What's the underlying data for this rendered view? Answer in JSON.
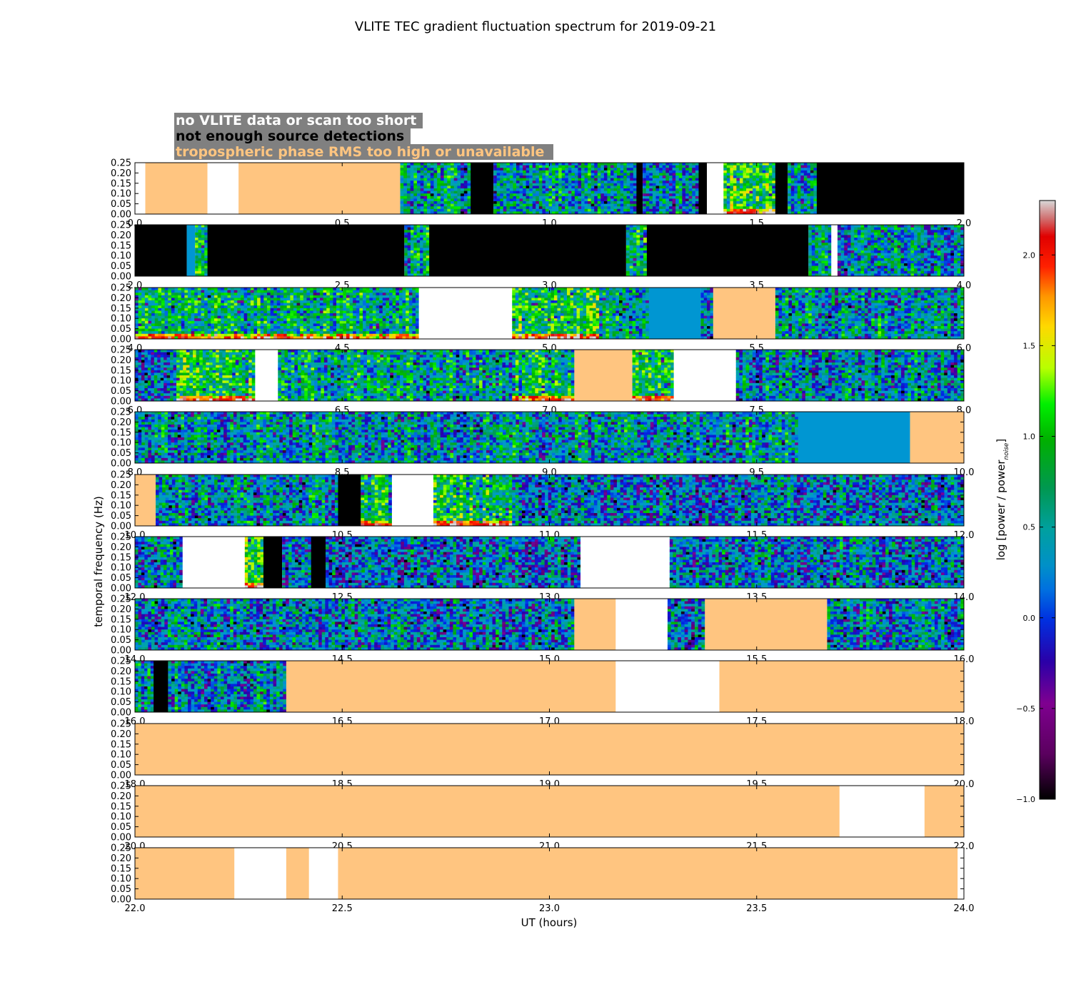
{
  "chart_data": {
    "type": "heatmap",
    "title": "VLITE TEC gradient fluctuation spectrum for 2019-09-21",
    "xlabel": "UT (hours)",
    "ylabel": "temporal frequency (Hz)",
    "colorbar": {
      "label": "log [power / power",
      "label_subscript": "noise",
      "label_close": "]",
      "range": [
        -1.0,
        2.3
      ],
      "ticks": [
        -1.0,
        -0.5,
        0.0,
        0.5,
        1.0,
        1.5,
        2.0
      ],
      "tick_labels": [
        "−1.0",
        "−0.5",
        "0.0",
        "0.5",
        "1.0",
        "1.5",
        "2.0"
      ]
    },
    "legend": [
      {
        "label": "no VLITE data or scan too short",
        "color": "#ffffff",
        "category": "nodata"
      },
      {
        "label": "not enough source detections",
        "color": "#000000",
        "category": "nodetect"
      },
      {
        "label": "tropospheric phase RMS too high or unavailable",
        "color": "#ffc580",
        "category": "tropo"
      }
    ],
    "yticks": [
      0.0,
      0.05,
      0.1,
      0.15,
      0.2,
      0.25
    ],
    "ytick_labels": [
      "0.00",
      "0.05",
      "0.10",
      "0.15",
      "0.20",
      "0.25"
    ],
    "panels": [
      {
        "x_range": [
          0.0,
          2.0
        ],
        "xticks": [
          "0.0",
          "0.5",
          "1.0",
          "1.5",
          "2.0"
        ],
        "segments": [
          {
            "start": 0.0,
            "end": 0.025,
            "type": "nodata"
          },
          {
            "start": 0.025,
            "end": 0.175,
            "type": "tropo"
          },
          {
            "start": 0.175,
            "end": 0.25,
            "type": "nodata"
          },
          {
            "start": 0.25,
            "end": 0.64,
            "type": "tropo"
          },
          {
            "start": 0.64,
            "end": 0.81,
            "type": "spectrum",
            "level": 0.2
          },
          {
            "start": 0.81,
            "end": 0.865,
            "type": "nodetect"
          },
          {
            "start": 0.865,
            "end": 1.21,
            "type": "spectrum",
            "level": 0.15
          },
          {
            "start": 1.21,
            "end": 1.225,
            "type": "nodetect"
          },
          {
            "start": 1.225,
            "end": 1.36,
            "type": "spectrum",
            "level": 0.1
          },
          {
            "start": 1.36,
            "end": 1.38,
            "type": "nodetect"
          },
          {
            "start": 1.38,
            "end": 1.42,
            "type": "nodata"
          },
          {
            "start": 1.42,
            "end": 1.545,
            "type": "spectrum",
            "level": 0.6,
            "hotlow": true
          },
          {
            "start": 1.545,
            "end": 1.575,
            "type": "nodetect"
          },
          {
            "start": 1.575,
            "end": 1.645,
            "type": "spectrum",
            "level": 0.2
          },
          {
            "start": 1.645,
            "end": 2.0,
            "type": "nodetect"
          }
        ]
      },
      {
        "x_range": [
          2.0,
          4.0
        ],
        "xticks": [
          "2.0",
          "2.5",
          "3.0",
          "3.5",
          "4.0"
        ],
        "segments": [
          {
            "start": 2.0,
            "end": 2.125,
            "type": "nodetect"
          },
          {
            "start": 2.125,
            "end": 2.145,
            "type": "flat"
          },
          {
            "start": 2.145,
            "end": 2.175,
            "type": "spectrum",
            "level": 0.4
          },
          {
            "start": 2.175,
            "end": 2.65,
            "type": "nodetect"
          },
          {
            "start": 2.65,
            "end": 2.71,
            "type": "spectrum",
            "level": 0.3
          },
          {
            "start": 2.71,
            "end": 3.185,
            "type": "nodetect"
          },
          {
            "start": 3.185,
            "end": 3.235,
            "type": "spectrum",
            "level": 0.3
          },
          {
            "start": 3.235,
            "end": 3.625,
            "type": "nodetect"
          },
          {
            "start": 3.625,
            "end": 3.68,
            "type": "spectrum",
            "level": 0.25
          },
          {
            "start": 3.68,
            "end": 3.695,
            "type": "nodata"
          },
          {
            "start": 3.695,
            "end": 4.0,
            "type": "spectrum",
            "level": 0.1
          }
        ]
      },
      {
        "x_range": [
          4.0,
          6.0
        ],
        "xticks": [
          "4.0",
          "4.5",
          "5.0",
          "5.5",
          "6.0"
        ],
        "segments": [
          {
            "start": 4.0,
            "end": 4.685,
            "type": "spectrum",
            "level": 0.35,
            "hotlow": true
          },
          {
            "start": 4.685,
            "end": 4.91,
            "type": "nodata"
          },
          {
            "start": 4.91,
            "end": 5.12,
            "type": "spectrum",
            "level": 0.6,
            "hotlow": true
          },
          {
            "start": 5.12,
            "end": 5.24,
            "type": "spectrum",
            "level": 0.3
          },
          {
            "start": 5.24,
            "end": 5.365,
            "type": "flat"
          },
          {
            "start": 5.365,
            "end": 5.395,
            "type": "spectrum",
            "level": 0.1
          },
          {
            "start": 5.395,
            "end": 5.545,
            "type": "tropo"
          },
          {
            "start": 5.545,
            "end": 6.0,
            "type": "spectrum",
            "level": 0.15
          }
        ]
      },
      {
        "x_range": [
          6.0,
          8.0
        ],
        "xticks": [
          "6.0",
          "6.5",
          "7.0",
          "7.5",
          "8.0"
        ],
        "segments": [
          {
            "start": 6.0,
            "end": 6.1,
            "type": "spectrum",
            "level": 0.0
          },
          {
            "start": 6.1,
            "end": 6.29,
            "type": "spectrum",
            "level": 0.55,
            "hotlow": true
          },
          {
            "start": 6.29,
            "end": 6.345,
            "type": "nodata"
          },
          {
            "start": 6.345,
            "end": 6.695,
            "type": "spectrum",
            "level": 0.3
          },
          {
            "start": 6.695,
            "end": 6.91,
            "type": "spectrum",
            "level": 0.2
          },
          {
            "start": 6.91,
            "end": 7.06,
            "type": "spectrum",
            "level": 0.4,
            "hotlow": true
          },
          {
            "start": 7.06,
            "end": 7.2,
            "type": "tropo"
          },
          {
            "start": 7.2,
            "end": 7.3,
            "type": "spectrum",
            "level": 0.5,
            "hotlow": true
          },
          {
            "start": 7.3,
            "end": 7.45,
            "type": "nodata"
          },
          {
            "start": 7.45,
            "end": 8.0,
            "type": "spectrum",
            "level": 0.1
          }
        ]
      },
      {
        "x_range": [
          8.0,
          10.0
        ],
        "xticks": [
          "8.0",
          "8.5",
          "9.0",
          "9.5",
          "10.0"
        ],
        "segments": [
          {
            "start": 8.0,
            "end": 9.6,
            "type": "spectrum",
            "level": 0.15
          },
          {
            "start": 9.6,
            "end": 9.87,
            "type": "flat"
          },
          {
            "start": 9.87,
            "end": 10.0,
            "type": "tropo"
          }
        ]
      },
      {
        "x_range": [
          10.0,
          12.0
        ],
        "xticks": [
          "10.0",
          "10.5",
          "11.0",
          "11.5",
          "12.0"
        ],
        "segments": [
          {
            "start": 10.0,
            "end": 10.05,
            "type": "tropo"
          },
          {
            "start": 10.05,
            "end": 10.49,
            "type": "spectrum",
            "level": 0.1
          },
          {
            "start": 10.49,
            "end": 10.545,
            "type": "nodetect"
          },
          {
            "start": 10.545,
            "end": 10.62,
            "type": "spectrum",
            "level": 0.4,
            "hotlow": true
          },
          {
            "start": 10.62,
            "end": 10.72,
            "type": "nodata"
          },
          {
            "start": 10.72,
            "end": 10.91,
            "type": "spectrum",
            "level": 0.5,
            "hotlow": true
          },
          {
            "start": 10.91,
            "end": 12.0,
            "type": "spectrum",
            "level": 0.0
          }
        ]
      },
      {
        "x_range": [
          12.0,
          14.0
        ],
        "xticks": [
          "12.0",
          "12.5",
          "13.0",
          "13.5",
          "14.0"
        ],
        "segments": [
          {
            "start": 12.0,
            "end": 12.115,
            "type": "spectrum",
            "level": 0.05
          },
          {
            "start": 12.115,
            "end": 12.265,
            "type": "nodata"
          },
          {
            "start": 12.265,
            "end": 12.31,
            "type": "spectrum",
            "level": 0.7,
            "hotlow": true
          },
          {
            "start": 12.31,
            "end": 12.355,
            "type": "nodetect"
          },
          {
            "start": 12.355,
            "end": 12.425,
            "type": "spectrum",
            "level": 0.05
          },
          {
            "start": 12.425,
            "end": 12.46,
            "type": "nodetect"
          },
          {
            "start": 12.46,
            "end": 13.075,
            "type": "spectrum",
            "level": 0.0
          },
          {
            "start": 13.075,
            "end": 13.29,
            "type": "nodata"
          },
          {
            "start": 13.29,
            "end": 14.0,
            "type": "spectrum",
            "level": 0.05
          }
        ]
      },
      {
        "x_range": [
          14.0,
          16.0
        ],
        "xticks": [
          "14.0",
          "14.5",
          "15.0",
          "15.5",
          "16.0"
        ],
        "segments": [
          {
            "start": 14.0,
            "end": 15.06,
            "type": "spectrum",
            "level": 0.05
          },
          {
            "start": 15.06,
            "end": 15.16,
            "type": "tropo"
          },
          {
            "start": 15.16,
            "end": 15.285,
            "type": "nodata"
          },
          {
            "start": 15.285,
            "end": 15.375,
            "type": "spectrum",
            "level": 0.0
          },
          {
            "start": 15.375,
            "end": 15.67,
            "type": "tropo"
          },
          {
            "start": 15.67,
            "end": 16.0,
            "type": "spectrum",
            "level": 0.1
          }
        ]
      },
      {
        "x_range": [
          16.0,
          18.0
        ],
        "xticks": [
          "16.0",
          "16.5",
          "17.0",
          "17.5",
          "18.0"
        ],
        "segments": [
          {
            "start": 16.0,
            "end": 16.045,
            "type": "spectrum",
            "level": 0.1
          },
          {
            "start": 16.045,
            "end": 16.08,
            "type": "nodetect"
          },
          {
            "start": 16.08,
            "end": 16.365,
            "type": "spectrum",
            "level": 0.1
          },
          {
            "start": 16.365,
            "end": 17.16,
            "type": "tropo"
          },
          {
            "start": 17.16,
            "end": 17.41,
            "type": "nodata"
          },
          {
            "start": 17.41,
            "end": 18.0,
            "type": "tropo"
          }
        ]
      },
      {
        "x_range": [
          18.0,
          20.0
        ],
        "xticks": [
          "18.0",
          "18.5",
          "19.0",
          "19.5",
          "20.0"
        ],
        "segments": [
          {
            "start": 18.0,
            "end": 20.0,
            "type": "tropo"
          }
        ]
      },
      {
        "x_range": [
          20.0,
          22.0
        ],
        "xticks": [
          "20.0",
          "20.5",
          "21.0",
          "21.5",
          "22.0"
        ],
        "segments": [
          {
            "start": 20.0,
            "end": 21.7,
            "type": "tropo"
          },
          {
            "start": 21.7,
            "end": 21.905,
            "type": "nodata"
          },
          {
            "start": 21.905,
            "end": 22.0,
            "type": "tropo"
          }
        ]
      },
      {
        "x_range": [
          22.0,
          24.0
        ],
        "xticks": [
          "22.0",
          "22.5",
          "23.0",
          "23.5",
          "24.0"
        ],
        "segments": [
          {
            "start": 22.0,
            "end": 22.24,
            "type": "tropo"
          },
          {
            "start": 22.24,
            "end": 22.365,
            "type": "nodata"
          },
          {
            "start": 22.365,
            "end": 22.42,
            "type": "tropo"
          },
          {
            "start": 22.42,
            "end": 22.49,
            "type": "nodata"
          },
          {
            "start": 22.49,
            "end": 23.985,
            "type": "tropo"
          },
          {
            "start": 23.985,
            "end": 24.0,
            "type": "nodata"
          }
        ]
      }
    ]
  }
}
